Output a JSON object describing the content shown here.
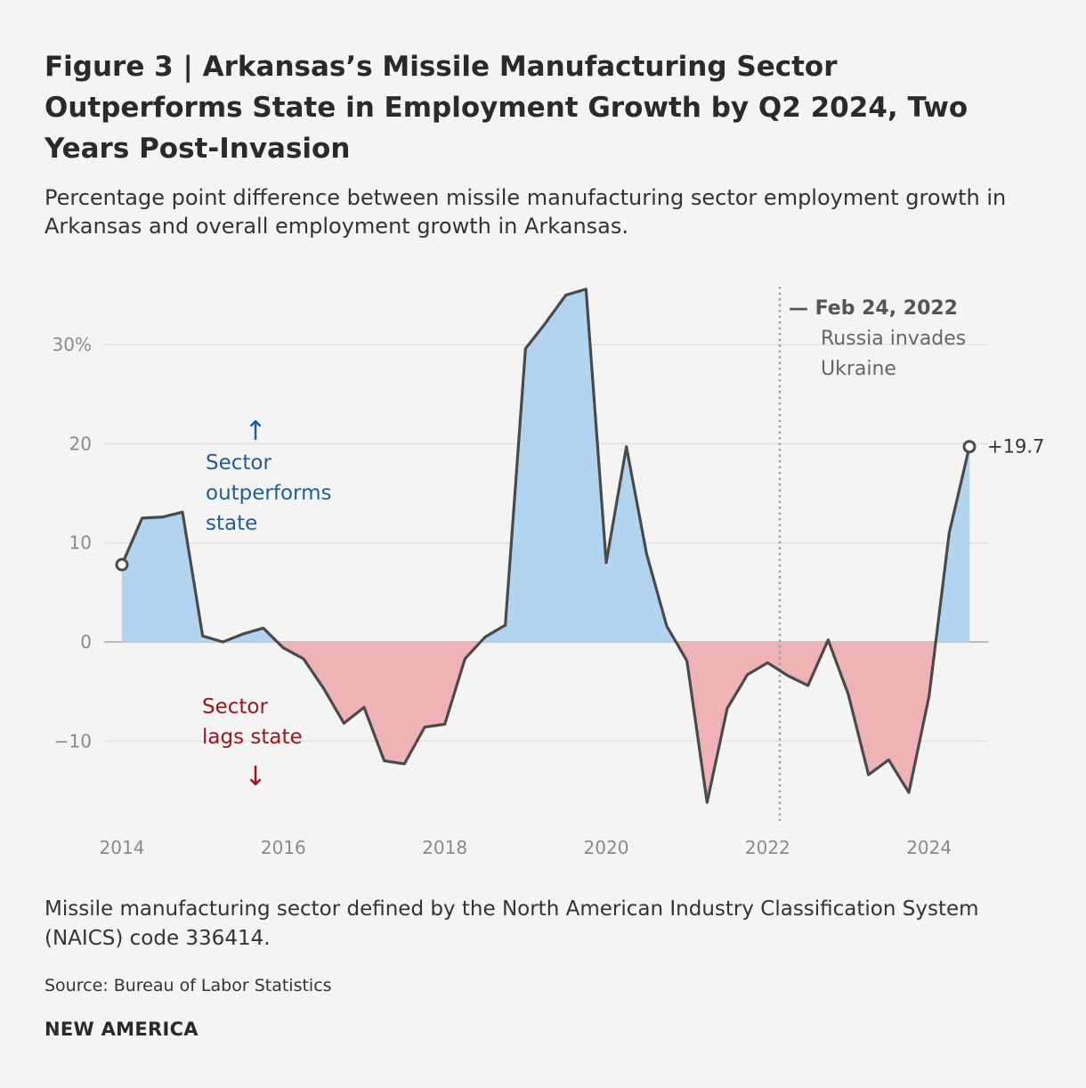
{
  "header": {
    "title": "Figure 3 | Arkansas’s Missile Manufacturing Sector Outperforms State in Employment Growth by Q2 2024, Two Years Post-Invasion",
    "subtitle": "Percentage point difference between missile manufacturing sector employment growth in Arkansas and overall employment growth in Arkansas."
  },
  "footer": {
    "note": "Missile manufacturing sector defined by the North American Industry Classification System (NAICS) code 336414.",
    "source": "Source: Bureau of Labor Statistics",
    "brand": "NEW AMERICA"
  },
  "colors": {
    "positive_fill": "#b3d4f0",
    "negative_fill": "#f0b3b5",
    "line": "#4a4a4a",
    "positive_text": "#1f5f96",
    "negative_text": "#a3131c",
    "gridline": "#d8d8d8"
  },
  "chart_data": {
    "type": "area",
    "x": [
      2014.0,
      2014.25,
      2014.5,
      2014.75,
      2015.0,
      2015.25,
      2015.5,
      2015.75,
      2016.0,
      2016.25,
      2016.5,
      2016.75,
      2017.0,
      2017.25,
      2017.5,
      2017.75,
      2018.0,
      2018.25,
      2018.5,
      2018.75,
      2019.0,
      2019.25,
      2019.5,
      2019.75,
      2020.0,
      2020.25,
      2020.5,
      2020.75,
      2021.0,
      2021.25,
      2021.5,
      2021.75,
      2022.0,
      2022.25,
      2022.5,
      2022.75,
      2023.0,
      2023.25,
      2023.5,
      2023.75,
      2024.0,
      2024.25,
      2024.5
    ],
    "series": [
      {
        "values": [
          7.8,
          12.5,
          12.6,
          13.1,
          0.6,
          0.0,
          0.8,
          1.4,
          -0.6,
          -1.7,
          -4.7,
          -8.2,
          -6.6,
          -12.0,
          -12.3,
          -8.6,
          -8.3,
          -1.7,
          0.5,
          1.7,
          29.6,
          32.2,
          35.0,
          35.6,
          8.0,
          19.7,
          8.9,
          1.6,
          -1.9,
          -16.2,
          -6.7,
          -3.3,
          -2.1,
          -3.4,
          -4.4,
          0.2,
          -5.3,
          -13.4,
          -11.9,
          -15.2,
          -5.5,
          11.0,
          19.7
        ]
      }
    ],
    "xticks": [
      "2014",
      "2016",
      "2018",
      "2020",
      "2022",
      "2024"
    ],
    "yticks": [
      "30%",
      "20",
      "10",
      "0",
      "−10"
    ],
    "ylim": [
      -18,
      36
    ],
    "xlim": [
      2014,
      2024.5
    ],
    "grid": true,
    "annotations": {
      "event_date_label": "— Feb 24, 2022",
      "event_desc_line1": "Russia invades",
      "event_desc_line2": "Ukraine",
      "end_value_label": "+19.7",
      "above_arrow": "↑",
      "above_line1": "Sector",
      "above_line2": "outperforms",
      "above_line3": "state",
      "below_line1": "Sector",
      "below_line2": "lags state",
      "below_arrow": "↓"
    }
  }
}
